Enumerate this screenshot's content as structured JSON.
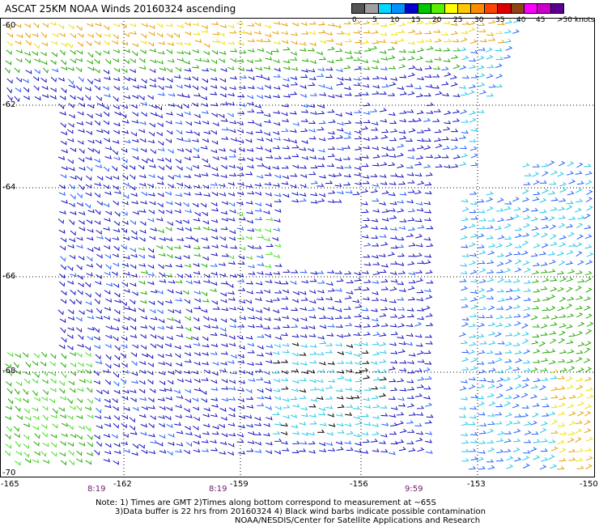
{
  "title": "ASCAT 25KM NOAA Winds 20160324 ascending",
  "legend": {
    "colors": [
      "#555555",
      "#a0a0a0",
      "#00d8ff",
      "#0090ff",
      "#0000cc",
      "#00c800",
      "#58f000",
      "#ffff00",
      "#ffc800",
      "#ff8c00",
      "#ff4400",
      "#dd0000",
      "#8b4513",
      "#ff00ff",
      "#cc00cc",
      "#5a0090"
    ],
    "labels": [
      "0",
      "5",
      "10",
      "15",
      "20",
      "25",
      "30",
      "35",
      "40",
      "45",
      ">50 knots"
    ]
  },
  "axes": {
    "lat_labels": [
      "-60",
      "-62",
      "-64",
      "-66",
      "-68",
      "-70"
    ],
    "lon_labels": [
      "-165",
      "-162",
      "-159",
      "-156",
      "-153",
      "-150"
    ]
  },
  "times": [
    "8:19",
    "8:19",
    "9:59"
  ],
  "notes": [
    "Note: 1) Times are GMT 2)Times along bottom correspond to measurement at ~65S",
    "3)Data buffer is 22 hrs from 20160324 4) Black wind barbs indicate possible contamination",
    "NOAA/NESDIS/Center for Satellite Applications and Research"
  ],
  "wind_colors": {
    "orange": "#e8a000",
    "yellow": "#f0e000",
    "green": "#22aa00",
    "light_green": "#44dd22",
    "blue": "#1010c0",
    "mid_blue": "#2060ff",
    "cyan": "#20c8e8",
    "black": "#000000"
  }
}
